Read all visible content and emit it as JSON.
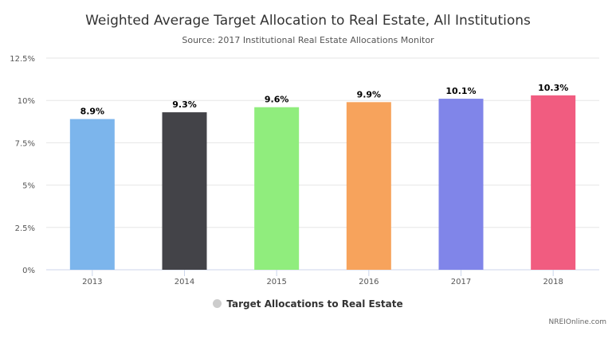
{
  "chart_data": {
    "type": "bar",
    "title": "Weighted Average Target Allocation to Real Estate, All Institutions",
    "subtitle": "Source: 2017 Institutional Real Estate Allocations Monitor",
    "categories": [
      "2013",
      "2014",
      "2015",
      "2016",
      "2017",
      "2018"
    ],
    "series": [
      {
        "name": "Target Allocations to Real Estate",
        "values": [
          8.9,
          9.3,
          9.6,
          9.9,
          10.1,
          10.3
        ],
        "labels": [
          "8.9%",
          "9.3%",
          "9.6%",
          "9.9%",
          "10.1%",
          "10.3%"
        ],
        "colors": [
          "#7cb5ec",
          "#434348",
          "#90ed7d",
          "#f7a35c",
          "#8085e9",
          "#f15c80"
        ]
      }
    ],
    "ylim": [
      0,
      12.5
    ],
    "yticks": [
      0,
      2.5,
      5,
      7.5,
      10,
      12.5
    ],
    "ytick_labels": [
      "0%",
      "2.5%",
      "5%",
      "7.5%",
      "10%",
      "12.5%"
    ],
    "grid": true,
    "legend": {
      "position": "bottom-center",
      "marker_color": "#cccccc"
    }
  },
  "credit": "NREIOnline.com"
}
